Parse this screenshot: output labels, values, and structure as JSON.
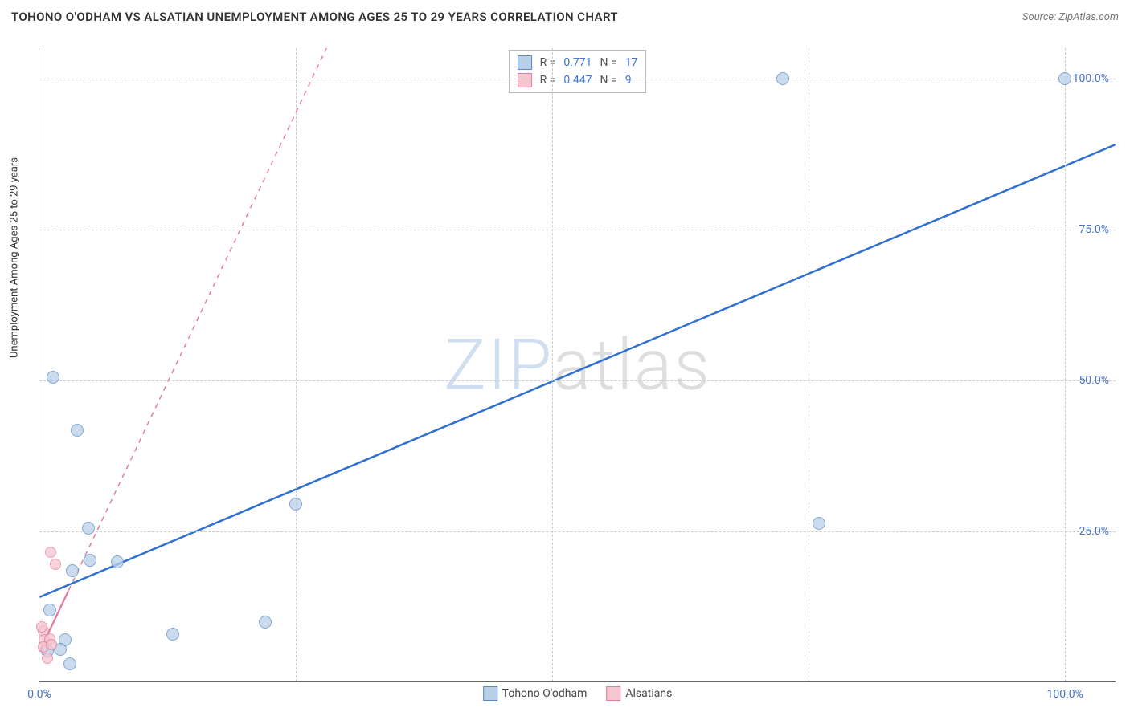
{
  "title": "TOHONO O'ODHAM VS ALSATIAN UNEMPLOYMENT AMONG AGES 25 TO 29 YEARS CORRELATION CHART",
  "source_label": "Source: ZipAtlas.com",
  "y_axis_label": "Unemployment Among Ages 25 to 29 years",
  "watermark_a": "ZIP",
  "watermark_b": "atlas",
  "chart": {
    "type": "scatter",
    "xlim": [
      0,
      105
    ],
    "ylim": [
      0,
      105
    ],
    "x_ticks": [
      0,
      100
    ],
    "x_tick_labels": [
      "0.0%",
      "100.0%"
    ],
    "y_ticks": [
      25,
      50,
      75,
      100
    ],
    "y_tick_labels": [
      "25.0%",
      "50.0%",
      "75.0%",
      "100.0%"
    ],
    "grid_h": [
      25,
      50,
      75,
      100
    ],
    "grid_v": [
      25,
      50,
      75,
      100
    ],
    "grid_color": "#cccccc",
    "background_color": "#ffffff",
    "axis_color": "#666666",
    "tick_color": "#4472c4",
    "series": [
      {
        "name": "Tohono O'odham",
        "marker_fill": "#b8cfe8",
        "marker_stroke": "#5a8ac6",
        "marker_opacity": 0.75,
        "marker_radius": 8,
        "line_color": "#2f6fd0",
        "line_width": 2.5,
        "line_dash": "solid",
        "swatch_fill": "#b8cfe8",
        "swatch_stroke": "#5a8ac6",
        "R": "0.771",
        "N": "17",
        "trend": {
          "x1": 0,
          "y1": 14,
          "x2": 105,
          "y2": 89
        },
        "points": [
          {
            "x": 1.3,
            "y": 50.5
          },
          {
            "x": 3.7,
            "y": 41.8
          },
          {
            "x": 4.8,
            "y": 25.5
          },
          {
            "x": 4.9,
            "y": 20.2
          },
          {
            "x": 7.6,
            "y": 20.0
          },
          {
            "x": 3.2,
            "y": 18.5
          },
          {
            "x": 1.0,
            "y": 12.0
          },
          {
            "x": 2.5,
            "y": 7.1
          },
          {
            "x": 0.8,
            "y": 5.2
          },
          {
            "x": 3.0,
            "y": 3.1
          },
          {
            "x": 13.0,
            "y": 8.0
          },
          {
            "x": 22.0,
            "y": 10.0
          },
          {
            "x": 25.0,
            "y": 29.5
          },
          {
            "x": 72.5,
            "y": 100.0
          },
          {
            "x": 76.0,
            "y": 26.3
          },
          {
            "x": 100.0,
            "y": 100.0
          },
          {
            "x": 2.0,
            "y": 5.5
          }
        ]
      },
      {
        "name": "Alsatians",
        "marker_fill": "#f5c5d0",
        "marker_stroke": "#e37d9c",
        "marker_opacity": 0.75,
        "marker_radius": 7,
        "line_color": "#e37d9c",
        "line_width": 1.5,
        "line_dash": "6,6",
        "swatch_fill": "#f5c5d0",
        "swatch_stroke": "#e37d9c",
        "R": "0.447",
        "N": "9",
        "trend": {
          "x1": 0,
          "y1": 5,
          "x2": 28,
          "y2": 105
        },
        "trend_solid_portion": {
          "x1": 0,
          "y1": 5,
          "x2": 2.8,
          "y2": 15
        },
        "points": [
          {
            "x": 0.4,
            "y": 8.5
          },
          {
            "x": 0.5,
            "y": 7.0
          },
          {
            "x": 1.0,
            "y": 7.2
          },
          {
            "x": 0.4,
            "y": 5.8
          },
          {
            "x": 1.2,
            "y": 6.2
          },
          {
            "x": 1.6,
            "y": 19.5
          },
          {
            "x": 1.1,
            "y": 21.5
          },
          {
            "x": 0.8,
            "y": 4.0
          },
          {
            "x": 0.2,
            "y": 9.2
          }
        ]
      }
    ]
  },
  "legend_top": {
    "R_label": "R  =",
    "N_label": "N  ="
  },
  "legend_bottom": {
    "items": [
      "Tohono O'odham",
      "Alsatians"
    ]
  }
}
